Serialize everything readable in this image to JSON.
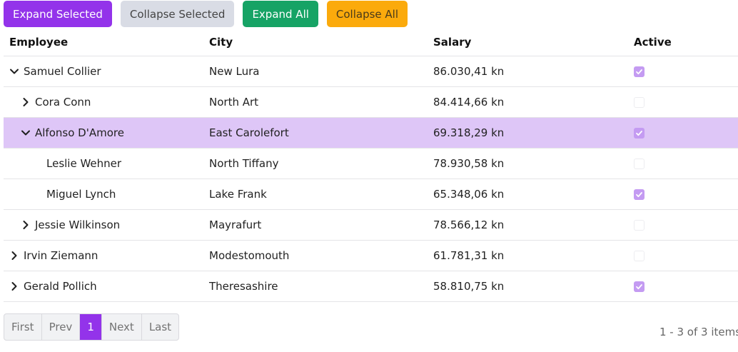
{
  "toolbar": {
    "expand_selected": "Expand Selected",
    "collapse_selected": "Collapse Selected",
    "expand_all": "Expand All",
    "collapse_all": "Collapse All"
  },
  "columns": {
    "employee": "Employee",
    "city": "City",
    "salary": "Salary",
    "active": "Active"
  },
  "rows": [
    {
      "name": "Samuel Collier",
      "city": "New Lura",
      "salary": "86.030,41 kn",
      "active": true,
      "level": 0,
      "expander": "expanded",
      "selected": false
    },
    {
      "name": "Cora Conn",
      "city": "North Art",
      "salary": "84.414,66 kn",
      "active": false,
      "level": 1,
      "expander": "collapsed",
      "selected": false
    },
    {
      "name": "Alfonso D'Amore",
      "city": "East Carolefort",
      "salary": "69.318,29 kn",
      "active": true,
      "level": 1,
      "expander": "expanded",
      "selected": true
    },
    {
      "name": "Leslie Wehner",
      "city": "North Tiffany",
      "salary": "78.930,58 kn",
      "active": false,
      "level": 2,
      "expander": "none",
      "selected": false
    },
    {
      "name": "Miguel Lynch",
      "city": "Lake Frank",
      "salary": "65.348,06 kn",
      "active": true,
      "level": 2,
      "expander": "none",
      "selected": false
    },
    {
      "name": "Jessie Wilkinson",
      "city": "Mayrafurt",
      "salary": "78.566,12 kn",
      "active": false,
      "level": 1,
      "expander": "collapsed",
      "selected": false
    },
    {
      "name": "Irvin Ziemann",
      "city": "Modestomouth",
      "salary": "61.781,31 kn",
      "active": false,
      "level": 0,
      "expander": "collapsed",
      "selected": false
    },
    {
      "name": "Gerald Pollich",
      "city": "Theresashire",
      "salary": "58.810,75 kn",
      "active": true,
      "level": 0,
      "expander": "collapsed",
      "selected": false
    }
  ],
  "pager": {
    "first": "First",
    "prev": "Prev",
    "current": "1",
    "next": "Next",
    "last": "Last"
  },
  "summary": "1 - 3 of 3 items",
  "colors": {
    "accent": "#9333ea",
    "selected_row": "#dec6f7",
    "green": "#16a365",
    "orange": "#fbaa0c"
  }
}
